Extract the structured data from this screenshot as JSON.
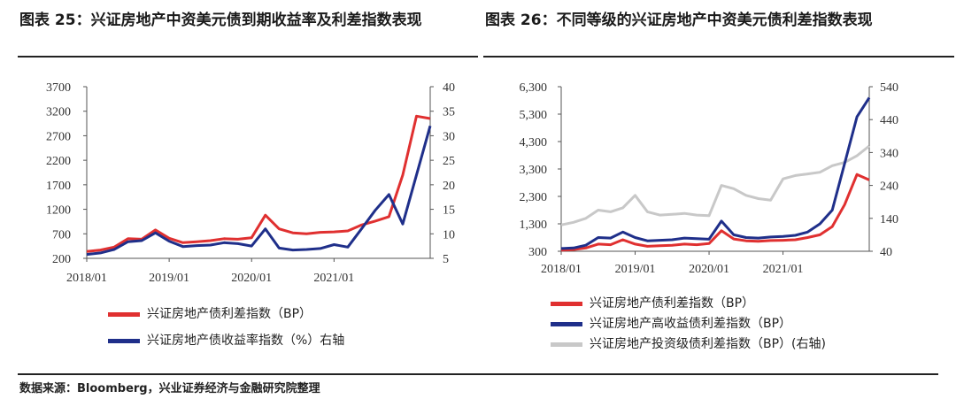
{
  "left": {
    "title": "图表 25：兴证房地产中资美元债到期收益率及利差指数表现",
    "legend": [
      {
        "label": "兴证房地产债利差指数（BP）",
        "color": "#e03030"
      },
      {
        "label": "兴证房地产债收益率指数（%）右轴",
        "color": "#1f2f8a"
      }
    ]
  },
  "right": {
    "title": "图表 26：不同等级的兴证房地产中资美元债利差指数表现",
    "legend": [
      {
        "label": "兴证房地产债利差指数（BP）",
        "color": "#e03030"
      },
      {
        "label": "兴证房地产高收益债利差指数（BP）",
        "color": "#1f2f8a"
      },
      {
        "label": "兴证房地产投资级债利差指数（BP）(右轴)",
        "color": "#c8c8c8"
      }
    ]
  },
  "source": "数据来源：Bloomberg，兴业证券经济与金融研究院整理",
  "chart_data": [
    {
      "type": "line",
      "x": [
        "2018/01",
        "2018/03",
        "2018/05",
        "2018/07",
        "2018/09",
        "2018/11",
        "2019/01",
        "2019/03",
        "2019/05",
        "2019/07",
        "2019/09",
        "2019/11",
        "2020/01",
        "2020/03",
        "2020/05",
        "2020/07",
        "2020/09",
        "2020/11",
        "2021/01",
        "2021/03",
        "2021/05",
        "2021/07",
        "2021/08",
        "2021/09",
        "2021/10",
        "2021/11"
      ],
      "xticks": [
        "2018/01",
        "2019/01",
        "2020/01",
        "2021/01"
      ],
      "series": [
        {
          "name": "兴证房地产债利差指数（BP）",
          "axis": "left",
          "color": "#e03030",
          "values": [
            340,
            370,
            430,
            600,
            590,
            780,
            610,
            520,
            540,
            560,
            600,
            590,
            620,
            1080,
            800,
            720,
            700,
            730,
            740,
            760,
            880,
            960,
            1050,
            1900,
            3100,
            3050
          ]
        },
        {
          "name": "兴证房地产债收益率指数（%）右轴",
          "axis": "right",
          "color": "#1f2f8a",
          "values": [
            5.8,
            6.1,
            6.8,
            8.4,
            8.6,
            10.2,
            8.5,
            7.4,
            7.6,
            7.7,
            8.2,
            8.0,
            7.5,
            11.0,
            7.1,
            6.7,
            6.8,
            7.0,
            7.8,
            7.3,
            11.0,
            14.8,
            18.0,
            12.0,
            22.0,
            32.0
          ]
        }
      ],
      "y_left": {
        "min": 200,
        "max": 3700,
        "ticks": [
          200,
          700,
          1200,
          1700,
          2200,
          2700,
          3200,
          3700
        ]
      },
      "y_right": {
        "min": 5,
        "max": 40,
        "ticks": [
          5,
          10,
          15,
          20,
          25,
          30,
          35,
          40
        ]
      }
    },
    {
      "type": "line",
      "x": [
        "2018/01",
        "2018/03",
        "2018/05",
        "2018/07",
        "2018/09",
        "2018/11",
        "2019/01",
        "2019/03",
        "2019/05",
        "2019/07",
        "2019/09",
        "2019/11",
        "2020/01",
        "2020/03",
        "2020/05",
        "2020/07",
        "2020/09",
        "2020/11",
        "2021/01",
        "2021/03",
        "2021/05",
        "2021/07",
        "2021/08",
        "2021/09",
        "2021/10",
        "2021/11"
      ],
      "xticks": [
        "2018/01",
        "2019/01",
        "2020/01",
        "2021/01"
      ],
      "series": [
        {
          "name": "兴证房地产债利差指数（BP）",
          "axis": "left",
          "color": "#e03030",
          "values": [
            340,
            360,
            420,
            560,
            540,
            720,
            560,
            480,
            500,
            520,
            560,
            540,
            580,
            1050,
            750,
            680,
            660,
            690,
            700,
            720,
            800,
            900,
            1200,
            2000,
            3100,
            2900
          ]
        },
        {
          "name": "兴证房地产高收益债利差指数（BP）",
          "axis": "left",
          "color": "#1f2f8a",
          "values": [
            400,
            420,
            520,
            800,
            780,
            1000,
            800,
            680,
            700,
            720,
            780,
            760,
            740,
            1400,
            900,
            800,
            780,
            820,
            840,
            880,
            1000,
            1300,
            1800,
            3500,
            5200,
            5900
          ]
        },
        {
          "name": "兴证房地产投资级债利差指数（BP）(右轴)",
          "axis": "right",
          "color": "#c8c8c8",
          "values": [
            120,
            128,
            140,
            165,
            160,
            172,
            210,
            160,
            150,
            152,
            155,
            150,
            148,
            240,
            230,
            210,
            200,
            195,
            260,
            270,
            275,
            280,
            300,
            310,
            330,
            360
          ]
        }
      ],
      "y_left": {
        "min": 300,
        "max": 6300,
        "ticks": [
          "300",
          "1,300",
          "2,300",
          "3,300",
          "4,300",
          "5,300",
          "6,300"
        ],
        "tick_values": [
          300,
          1300,
          2300,
          3300,
          4300,
          5300,
          6300
        ]
      },
      "y_right": {
        "min": 40,
        "max": 540,
        "ticks": [
          40,
          140,
          240,
          340,
          440,
          540
        ]
      }
    }
  ]
}
